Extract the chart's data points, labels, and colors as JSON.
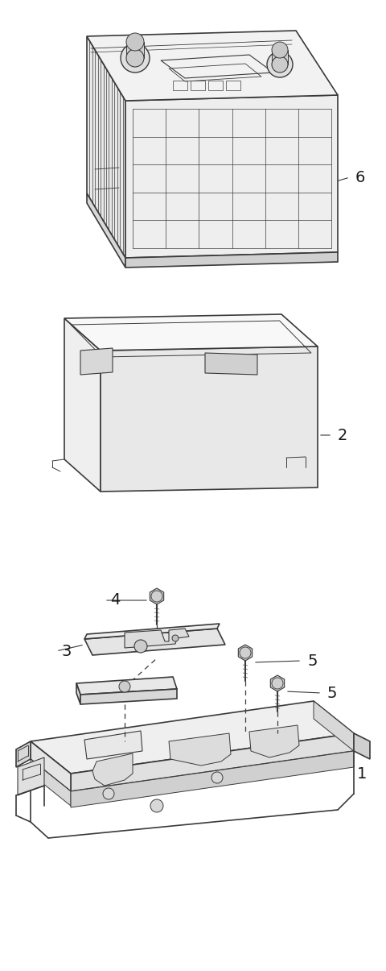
{
  "background_color": "#ffffff",
  "line_color": "#3a3a3a",
  "fill_light": "#f5f5f5",
  "fill_mid": "#ebebeb",
  "fill_dark": "#dedede",
  "fig_width": 4.8,
  "fig_height": 12.05,
  "dpi": 100
}
